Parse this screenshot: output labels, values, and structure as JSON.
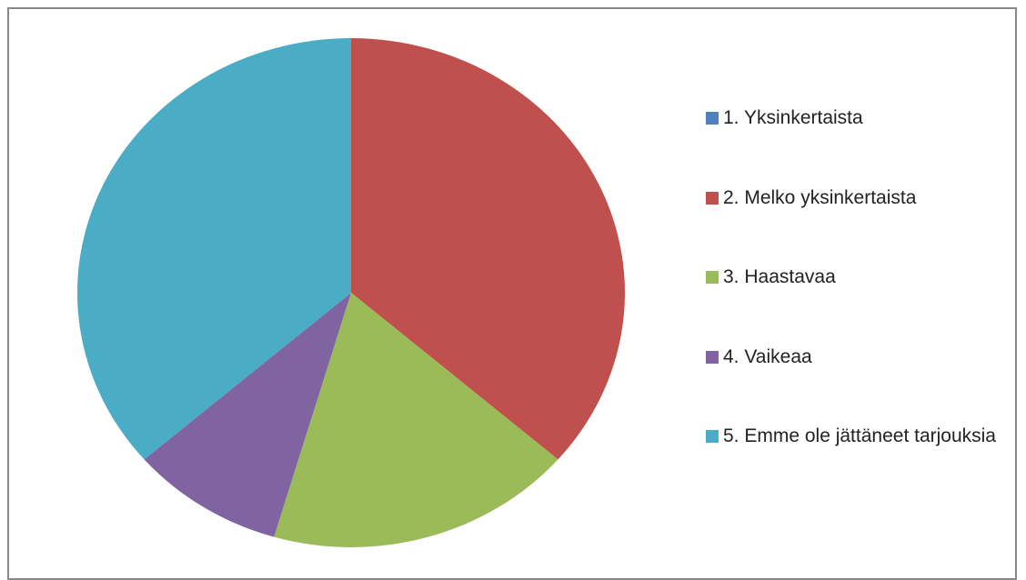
{
  "chart_data": {
    "type": "pie",
    "categories": [
      "1. Yksinkertaista",
      "2. Melko yksinkertaista",
      "3. Haastavaa",
      "4. Vaikeaa",
      "5. Emme ole jättäneet tarjouksia"
    ],
    "values": [
      0,
      4,
      2,
      1,
      4
    ],
    "colors": [
      "#4f81bd",
      "#c0504d",
      "#9bbb59",
      "#8064a2",
      "#4bacc6"
    ],
    "legend": "right"
  }
}
